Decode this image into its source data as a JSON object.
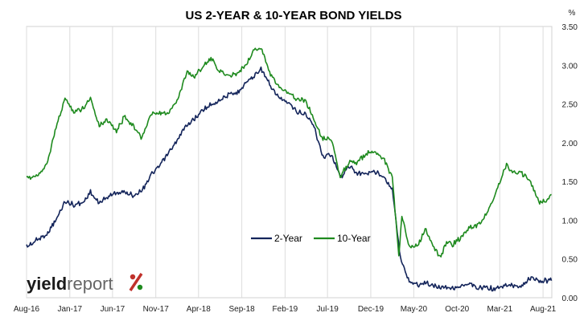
{
  "chart_data": {
    "type": "line",
    "title": "US 2-YEAR & 10-YEAR BOND YIELDS",
    "y_unit": "%",
    "ylim": [
      0,
      3.5
    ],
    "y_ticks": [
      "0.00",
      "0.50",
      "1.00",
      "1.50",
      "2.00",
      "2.50",
      "3.00",
      "3.50"
    ],
    "x_ticks": [
      {
        "label": "Aug-16",
        "date": "2016-08-01"
      },
      {
        "label": "Jan-17",
        "date": "2017-01-01"
      },
      {
        "label": "Jun-17",
        "date": "2017-06-01"
      },
      {
        "label": "Nov-17",
        "date": "2017-11-01"
      },
      {
        "label": "Apr-18",
        "date": "2018-04-01"
      },
      {
        "label": "Sep-18",
        "date": "2018-09-01"
      },
      {
        "label": "Feb-19",
        "date": "2019-02-01"
      },
      {
        "label": "Jul-19",
        "date": "2019-07-01"
      },
      {
        "label": "Dec-19",
        "date": "2019-12-01"
      },
      {
        "label": "May-20",
        "date": "2020-05-01"
      },
      {
        "label": "Oct-20",
        "date": "2020-10-01"
      },
      {
        "label": "Mar-21",
        "date": "2021-03-01"
      },
      {
        "label": "Aug-21",
        "date": "2021-08-01"
      }
    ],
    "xlim": [
      "2016-08-01",
      "2021-09-01"
    ],
    "grid": "vertical",
    "legend_position": "center-bottom",
    "series": [
      {
        "name": "2-Year",
        "color": "#13245a",
        "points": [
          [
            "2016-08-01",
            0.66
          ],
          [
            "2016-09-15",
            0.76
          ],
          [
            "2016-10-15",
            0.84
          ],
          [
            "2016-11-10",
            0.98
          ],
          [
            "2016-12-15",
            1.25
          ],
          [
            "2017-01-15",
            1.2
          ],
          [
            "2017-02-15",
            1.22
          ],
          [
            "2017-03-15",
            1.36
          ],
          [
            "2017-04-15",
            1.22
          ],
          [
            "2017-05-15",
            1.3
          ],
          [
            "2017-06-15",
            1.36
          ],
          [
            "2017-07-15",
            1.36
          ],
          [
            "2017-08-15",
            1.32
          ],
          [
            "2017-09-15",
            1.4
          ],
          [
            "2017-10-15",
            1.58
          ],
          [
            "2017-11-15",
            1.7
          ],
          [
            "2017-12-15",
            1.86
          ],
          [
            "2018-01-15",
            2.02
          ],
          [
            "2018-02-15",
            2.22
          ],
          [
            "2018-03-15",
            2.3
          ],
          [
            "2018-04-15",
            2.42
          ],
          [
            "2018-05-15",
            2.5
          ],
          [
            "2018-06-15",
            2.55
          ],
          [
            "2018-07-15",
            2.62
          ],
          [
            "2018-08-15",
            2.64
          ],
          [
            "2018-09-15",
            2.78
          ],
          [
            "2018-10-15",
            2.86
          ],
          [
            "2018-11-08",
            2.96
          ],
          [
            "2018-12-15",
            2.7
          ],
          [
            "2019-01-15",
            2.57
          ],
          [
            "2019-02-15",
            2.5
          ],
          [
            "2019-03-15",
            2.4
          ],
          [
            "2019-04-15",
            2.37
          ],
          [
            "2019-05-15",
            2.2
          ],
          [
            "2019-06-15",
            1.82
          ],
          [
            "2019-07-15",
            1.85
          ],
          [
            "2019-08-15",
            1.55
          ],
          [
            "2019-09-15",
            1.7
          ],
          [
            "2019-10-15",
            1.6
          ],
          [
            "2019-11-15",
            1.61
          ],
          [
            "2019-12-15",
            1.62
          ],
          [
            "2020-01-15",
            1.58
          ],
          [
            "2020-02-15",
            1.4
          ],
          [
            "2020-03-15",
            0.5
          ],
          [
            "2020-04-15",
            0.22
          ],
          [
            "2020-05-15",
            0.17
          ],
          [
            "2020-06-15",
            0.19
          ],
          [
            "2020-07-15",
            0.15
          ],
          [
            "2020-08-15",
            0.14
          ],
          [
            "2020-09-15",
            0.13
          ],
          [
            "2020-10-15",
            0.15
          ],
          [
            "2020-11-15",
            0.17
          ],
          [
            "2020-12-15",
            0.12
          ],
          [
            "2021-01-15",
            0.13
          ],
          [
            "2021-02-15",
            0.11
          ],
          [
            "2021-03-15",
            0.15
          ],
          [
            "2021-04-15",
            0.16
          ],
          [
            "2021-05-15",
            0.15
          ],
          [
            "2021-06-20",
            0.27
          ],
          [
            "2021-07-15",
            0.2
          ],
          [
            "2021-08-15",
            0.22
          ],
          [
            "2021-08-31",
            0.22
          ]
        ]
      },
      {
        "name": "10-Year",
        "color": "#1e8a1e",
        "points": [
          [
            "2016-08-01",
            1.53
          ],
          [
            "2016-09-15",
            1.6
          ],
          [
            "2016-10-15",
            1.75
          ],
          [
            "2016-11-10",
            2.15
          ],
          [
            "2016-12-15",
            2.58
          ],
          [
            "2017-01-15",
            2.4
          ],
          [
            "2017-02-15",
            2.44
          ],
          [
            "2017-03-15",
            2.58
          ],
          [
            "2017-04-15",
            2.22
          ],
          [
            "2017-05-15",
            2.3
          ],
          [
            "2017-06-15",
            2.15
          ],
          [
            "2017-07-15",
            2.35
          ],
          [
            "2017-08-15",
            2.2
          ],
          [
            "2017-09-10",
            2.06
          ],
          [
            "2017-10-15",
            2.36
          ],
          [
            "2017-11-15",
            2.38
          ],
          [
            "2017-12-15",
            2.38
          ],
          [
            "2018-01-15",
            2.55
          ],
          [
            "2018-02-20",
            2.92
          ],
          [
            "2018-03-15",
            2.85
          ],
          [
            "2018-04-25",
            3.02
          ],
          [
            "2018-05-15",
            3.08
          ],
          [
            "2018-06-15",
            2.92
          ],
          [
            "2018-07-15",
            2.86
          ],
          [
            "2018-08-15",
            2.9
          ],
          [
            "2018-09-15",
            3.0
          ],
          [
            "2018-10-15",
            3.2
          ],
          [
            "2018-11-08",
            3.22
          ],
          [
            "2018-12-15",
            2.85
          ],
          [
            "2019-01-15",
            2.7
          ],
          [
            "2019-02-15",
            2.66
          ],
          [
            "2019-03-15",
            2.55
          ],
          [
            "2019-04-15",
            2.55
          ],
          [
            "2019-05-15",
            2.3
          ],
          [
            "2019-06-15",
            2.05
          ],
          [
            "2019-07-15",
            2.05
          ],
          [
            "2019-08-15",
            1.55
          ],
          [
            "2019-09-15",
            1.75
          ],
          [
            "2019-10-15",
            1.75
          ],
          [
            "2019-11-15",
            1.85
          ],
          [
            "2019-12-15",
            1.9
          ],
          [
            "2020-01-15",
            1.8
          ],
          [
            "2020-02-15",
            1.55
          ],
          [
            "2020-03-09",
            0.55
          ],
          [
            "2020-03-20",
            1.05
          ],
          [
            "2020-04-15",
            0.65
          ],
          [
            "2020-05-15",
            0.68
          ],
          [
            "2020-06-10",
            0.88
          ],
          [
            "2020-07-15",
            0.62
          ],
          [
            "2020-08-05",
            0.52
          ],
          [
            "2020-08-25",
            0.72
          ],
          [
            "2020-09-15",
            0.68
          ],
          [
            "2020-10-15",
            0.78
          ],
          [
            "2020-11-15",
            0.9
          ],
          [
            "2020-12-15",
            0.93
          ],
          [
            "2021-01-15",
            1.1
          ],
          [
            "2021-02-15",
            1.35
          ],
          [
            "2021-03-25",
            1.72
          ],
          [
            "2021-04-15",
            1.62
          ],
          [
            "2021-05-15",
            1.62
          ],
          [
            "2021-06-15",
            1.5
          ],
          [
            "2021-07-20",
            1.22
          ],
          [
            "2021-08-15",
            1.26
          ],
          [
            "2021-08-31",
            1.33
          ]
        ]
      }
    ]
  },
  "logo": {
    "dark": "yield",
    "light": "report",
    "symbol": "%",
    "symbol_color_left": "#c0312b",
    "symbol_color_right": "#1e8a1e"
  }
}
